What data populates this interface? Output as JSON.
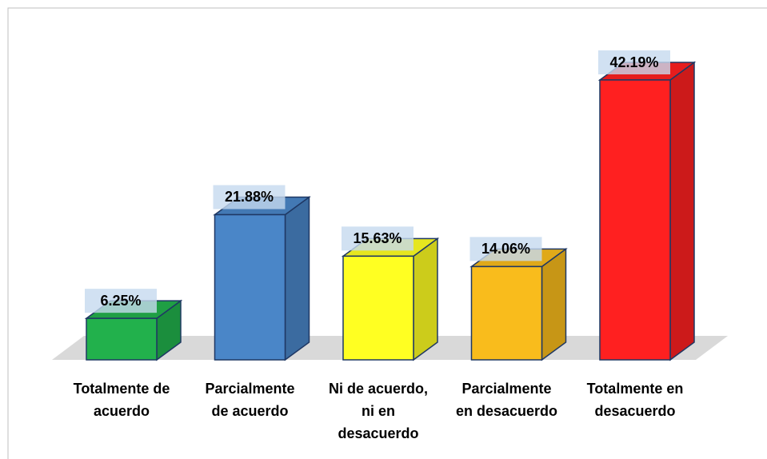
{
  "chart_data": {
    "type": "bar3d",
    "categories": [
      "Totalmente de acuerdo",
      "Parcialmente de acuerdo",
      "Ni de acuerdo, ni en desacuerdo",
      "Parcialmente en desacuerdo",
      "Totalmente en desacuerdo"
    ],
    "values": [
      6.25,
      21.88,
      15.63,
      14.06,
      42.19
    ],
    "value_labels": [
      "6.25%",
      "21.88%",
      "15.63%",
      "14.06%",
      "42.19%"
    ],
    "colors": [
      "#22b14c",
      "#4a86c8",
      "#ffff22",
      "#f9bc1c",
      "#ff2020"
    ]
  }
}
